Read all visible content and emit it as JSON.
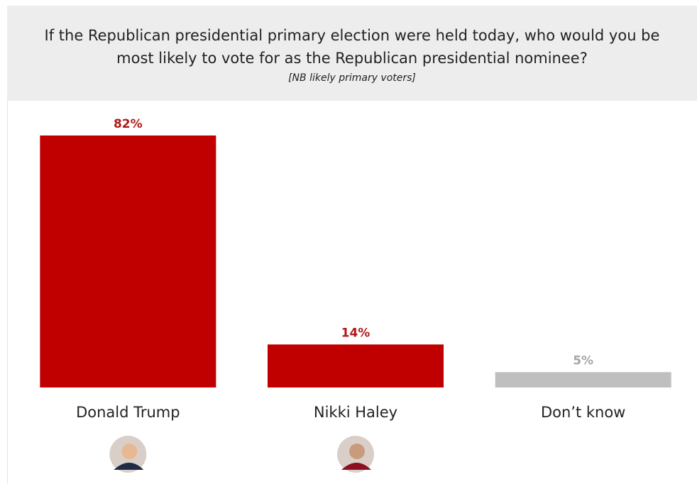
{
  "chart_data": {
    "type": "bar",
    "title": "If the Republican presidential primary election were held today, who would you be most likely to vote for as the Republican presidential nominee?",
    "subtitle": "[NB likely primary voters]",
    "categories": [
      "Donald Trump",
      "Nikki Haley",
      "Don’t know"
    ],
    "values": [
      82,
      14,
      5
    ],
    "value_labels": [
      "82%",
      "14%",
      "5%"
    ],
    "colors": [
      "#c00000",
      "#c00000",
      "#bfbfbf"
    ]
  }
}
